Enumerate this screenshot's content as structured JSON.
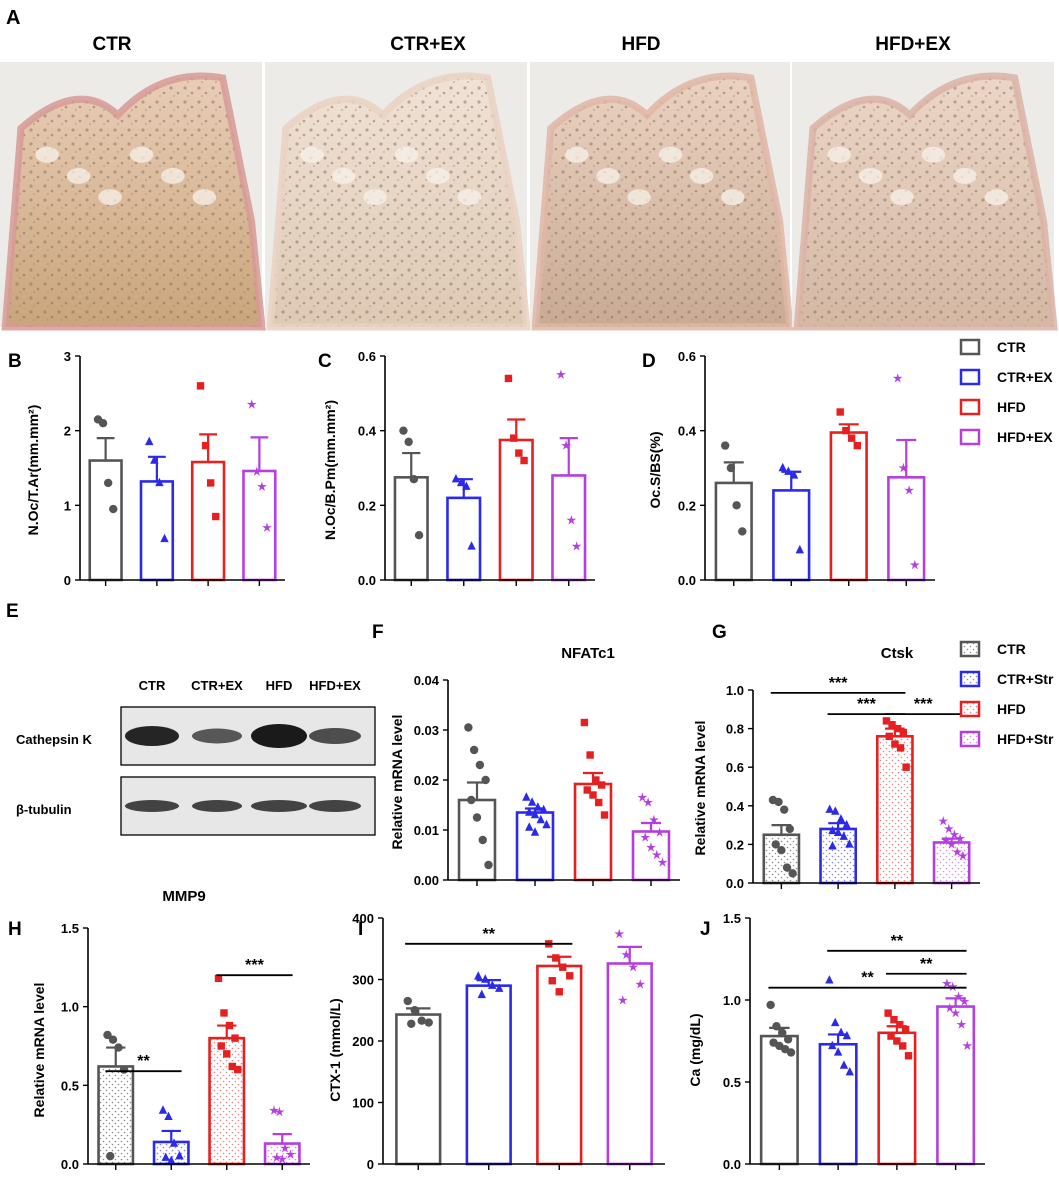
{
  "colors": {
    "CTR": "#555555",
    "CTR+EX": "#2a2ae8",
    "HFD": "#e52020",
    "HFD+EX": "#b43ee0"
  },
  "panel_a": {
    "letter": "A",
    "groups": [
      "CTR",
      "CTR+EX",
      "HFD",
      "HFD+EX"
    ]
  },
  "legend_top": [
    "CTR",
    "CTR+EX",
    "HFD",
    "HFD+EX"
  ],
  "legend_g": [
    "CTR",
    "CTR+Str",
    "HFD",
    "HFD+Str"
  ],
  "panel_e": {
    "letter": "E",
    "lanes": [
      "CTR",
      "CTR+EX",
      "HFD",
      "HFD+EX"
    ],
    "rows": [
      "Cathepsin K",
      "β-tubulin"
    ]
  },
  "chart_data": [
    {
      "panel": "B",
      "type": "bar",
      "title": "",
      "ylabel": "N.Oc/T.Ar(mm.mm²)",
      "ylim": [
        0,
        3
      ],
      "yticks": [
        "0",
        "1",
        "2",
        "3"
      ],
      "categories": [
        "CTR",
        "CTR+EX",
        "HFD",
        "HFD+EX"
      ],
      "values": [
        1.6,
        1.32,
        1.58,
        1.46
      ],
      "sem": [
        0.3,
        0.33,
        0.37,
        0.45
      ],
      "points": [
        [
          2.15,
          2.1,
          1.3,
          0.95
        ],
        [
          1.85,
          1.6,
          1.3,
          0.55
        ],
        [
          2.6,
          1.8,
          1.3,
          0.85
        ],
        [
          2.35,
          1.45,
          1.25,
          0.7
        ]
      ],
      "style": "open",
      "brackets": []
    },
    {
      "panel": "C",
      "type": "bar",
      "title": "",
      "ylabel": "N.Oc/B.Pm(mm.mm²)",
      "ylim": [
        0,
        0.6
      ],
      "yticks": [
        "0.0",
        "0.2",
        "0.4",
        "0.6"
      ],
      "categories": [
        "CTR",
        "CTR+EX",
        "HFD",
        "HFD+EX"
      ],
      "values": [
        0.275,
        0.22,
        0.375,
        0.28
      ],
      "sem": [
        0.065,
        0.05,
        0.055,
        0.1
      ],
      "points": [
        [
          0.4,
          0.37,
          0.27,
          0.12
        ],
        [
          0.27,
          0.26,
          0.25,
          0.09
        ],
        [
          0.54,
          0.38,
          0.34,
          0.32
        ],
        [
          0.55,
          0.36,
          0.16,
          0.09
        ]
      ],
      "style": "open",
      "brackets": []
    },
    {
      "panel": "D",
      "type": "bar",
      "title": "",
      "ylabel": "Oc.S/BS(%)",
      "ylim": [
        0,
        0.6
      ],
      "yticks": [
        "0.0",
        "0.2",
        "0.4",
        "0.6"
      ],
      "categories": [
        "CTR",
        "CTR+EX",
        "HFD",
        "HFD+EX"
      ],
      "values": [
        0.26,
        0.24,
        0.395,
        0.275
      ],
      "sem": [
        0.055,
        0.05,
        0.022,
        0.1
      ],
      "points": [
        [
          0.36,
          0.3,
          0.2,
          0.13
        ],
        [
          0.3,
          0.29,
          0.28,
          0.08
        ],
        [
          0.45,
          0.4,
          0.38,
          0.36
        ],
        [
          0.54,
          0.3,
          0.24,
          0.04
        ]
      ],
      "style": "open",
      "brackets": []
    },
    {
      "panel": "F",
      "type": "bar",
      "title": "NFATc1",
      "ylabel": "Relative mRNA level",
      "ylim": [
        0,
        0.04
      ],
      "yticks": [
        "0.00",
        "0.01",
        "0.02",
        "0.03",
        "0.04"
      ],
      "categories": [
        "CTR",
        "CTR+Str",
        "HFD",
        "HFD+Str"
      ],
      "values": [
        0.016,
        0.0135,
        0.0192,
        0.0097
      ],
      "sem": [
        0.0035,
        0.0008,
        0.0022,
        0.0017
      ],
      "points": [
        [
          0.0305,
          0.026,
          0.023,
          0.02,
          0.016,
          0.0125,
          0.008,
          0.003
        ],
        [
          0.0165,
          0.0155,
          0.0145,
          0.014,
          0.0135,
          0.013,
          0.012,
          0.011,
          0.0105,
          0.0095
        ],
        [
          0.0315,
          0.025,
          0.02,
          0.019,
          0.018,
          0.017,
          0.0155,
          0.013
        ],
        [
          0.0165,
          0.0155,
          0.012,
          0.0095,
          0.0085,
          0.0065,
          0.005,
          0.0035
        ]
      ],
      "style": "open",
      "brackets": []
    },
    {
      "panel": "G",
      "type": "bar",
      "title": "Ctsk",
      "ylabel": "Relative mRNA level",
      "ylim": [
        0,
        1.0
      ],
      "yticks": [
        "0.0",
        "0.2",
        "0.4",
        "0.6",
        "0.8",
        "1.0"
      ],
      "categories": [
        "CTR",
        "CTR+Str",
        "HFD",
        "HFD+Str"
      ],
      "values": [
        0.25,
        0.28,
        0.76,
        0.21
      ],
      "sem": [
        0.05,
        0.03,
        0.04,
        0.02
      ],
      "points": [
        [
          0.43,
          0.42,
          0.38,
          0.28,
          0.2,
          0.17,
          0.08,
          0.05
        ],
        [
          0.38,
          0.37,
          0.33,
          0.3,
          0.27,
          0.26,
          0.24,
          0.2,
          0.19
        ],
        [
          0.84,
          0.82,
          0.8,
          0.78,
          0.76,
          0.72,
          0.7,
          0.6
        ],
        [
          0.32,
          0.28,
          0.25,
          0.23,
          0.22,
          0.2,
          0.16,
          0.14
        ]
      ],
      "style": "dotted",
      "brackets": [
        {
          "from": 0,
          "to": 2,
          "label": "***",
          "y": 0.985
        },
        {
          "from": 1,
          "to": 2,
          "label": "***",
          "y": 0.875
        },
        {
          "from": 2,
          "to": 3,
          "label": "***",
          "y": 0.875
        }
      ]
    },
    {
      "panel": "H",
      "type": "bar",
      "title": "MMP9",
      "ylabel": "Relative mRNA level",
      "ylim": [
        0,
        1.5
      ],
      "yticks": [
        "0.0",
        "0.5",
        "1.0",
        "1.5"
      ],
      "categories": [
        "CTR",
        "CTR+Str",
        "HFD",
        "HFD+Str"
      ],
      "values": [
        0.62,
        0.14,
        0.8,
        0.13
      ],
      "sem": [
        0.12,
        0.07,
        0.08,
        0.06
      ],
      "points": [
        [
          0.82,
          0.79,
          0.74,
          0.6,
          0.05
        ],
        [
          0.34,
          0.3,
          0.13,
          0.05,
          0.04,
          0.02
        ],
        [
          1.18,
          0.96,
          0.88,
          0.8,
          0.75,
          0.7,
          0.62,
          0.6
        ],
        [
          0.34,
          0.33,
          0.1,
          0.06,
          0.04,
          0.03
        ]
      ],
      "style": "dotted",
      "brackets": [
        {
          "from": 0,
          "to": 1,
          "label": "**",
          "y": 0.59
        },
        {
          "from": 2,
          "to": 3,
          "label": "***",
          "y": 1.2
        }
      ]
    },
    {
      "panel": "I",
      "type": "bar",
      "title": "",
      "ylabel": "CTX-1 (mmol/L)",
      "ylim": [
        0,
        400
      ],
      "yticks": [
        "0",
        "100",
        "200",
        "300",
        "400"
      ],
      "categories": [
        "CTR",
        "CTR+EX",
        "HFD",
        "HFD+EX"
      ],
      "values": [
        243,
        290,
        322,
        326
      ],
      "sem": [
        10,
        9,
        15,
        27
      ],
      "points": [
        [
          265,
          250,
          233,
          230,
          228
        ],
        [
          305,
          300,
          290,
          285,
          275
        ],
        [
          358,
          335,
          320,
          306,
          298,
          280
        ],
        [
          374,
          340,
          320,
          292,
          266
        ]
      ],
      "style": "open",
      "brackets": [
        {
          "from": 0,
          "to": 2,
          "label": "**",
          "y": 358
        }
      ]
    },
    {
      "panel": "J",
      "type": "bar",
      "title": "",
      "ylabel": "Ca (mg/dL)",
      "ylim": [
        0,
        1.5
      ],
      "yticks": [
        "0.0",
        "0.5",
        "1.0",
        "1.5"
      ],
      "categories": [
        "CTR",
        "CTR+EX",
        "HFD",
        "HFD+EX"
      ],
      "values": [
        0.78,
        0.73,
        0.8,
        0.96
      ],
      "sem": [
        0.05,
        0.06,
        0.04,
        0.05
      ],
      "points": [
        [
          0.97,
          0.84,
          0.8,
          0.76,
          0.74,
          0.72,
          0.7,
          0.68
        ],
        [
          1.12,
          0.86,
          0.8,
          0.78,
          0.72,
          0.68,
          0.6,
          0.56
        ],
        [
          0.92,
          0.88,
          0.85,
          0.82,
          0.78,
          0.75,
          0.72,
          0.66
        ],
        [
          1.1,
          1.08,
          1.02,
          0.99,
          0.95,
          0.92,
          0.85,
          0.72
        ]
      ],
      "style": "open",
      "brackets": [
        {
          "from": 1,
          "to": 3,
          "label": "**",
          "y": 1.3
        },
        {
          "from": 2,
          "to": 3,
          "label": "**",
          "y": 1.16
        },
        {
          "from": 0,
          "to": 3,
          "label": "**",
          "y": 1.075
        }
      ]
    }
  ]
}
